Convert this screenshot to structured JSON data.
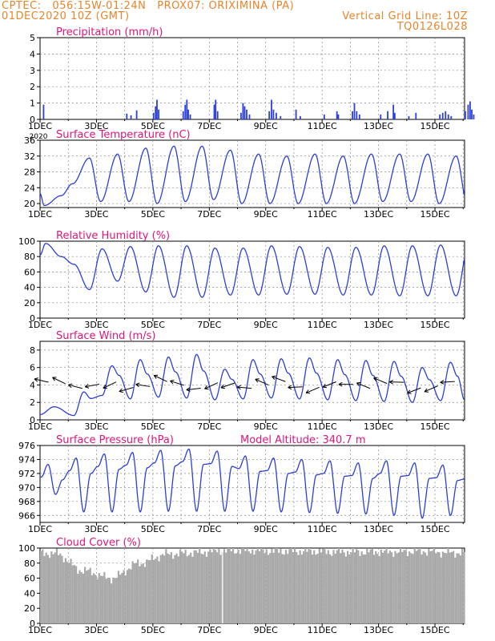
{
  "header": {
    "line1": "CPTEC:   056:15W-01:24N   PROX07: ORIXIMINA (PA)",
    "line2": "01DEC2020 10Z (GMT)",
    "right1": "Vertical Grid Line: 10Z",
    "right2": "TQ0126L028"
  },
  "colors": {
    "header": "#e8842a",
    "title": "#e0157a",
    "series": "#2c3fd6",
    "cloud": "#a9a9a9"
  },
  "x_ticks": [
    "1DEC",
    "3DEC",
    "5DEC",
    "7DEC",
    "9DEC",
    "11DEC",
    "13DEC",
    "15DEC"
  ],
  "chart_data": [
    {
      "id": "precip",
      "type": "bar",
      "title": "Precipitation (mm/h)",
      "ylim": [
        0,
        5
      ],
      "yticks": [
        0,
        1,
        2,
        3,
        4,
        5
      ],
      "x_label_suffix": "2020",
      "events": [
        [
          0.1,
          0.9
        ],
        [
          3.05,
          0.35
        ],
        [
          3.2,
          0.25
        ],
        [
          3.4,
          0.55
        ],
        [
          4.0,
          0.4
        ],
        [
          4.07,
          0.8
        ],
        [
          4.12,
          1.2
        ],
        [
          4.18,
          0.6
        ],
        [
          5.05,
          0.5
        ],
        [
          5.12,
          0.9
        ],
        [
          5.18,
          1.2
        ],
        [
          5.23,
          0.6
        ],
        [
          5.3,
          0.3
        ],
        [
          6.15,
          0.9
        ],
        [
          6.2,
          1.2
        ],
        [
          6.27,
          0.5
        ],
        [
          7.1,
          0.4
        ],
        [
          7.17,
          1.0
        ],
        [
          7.23,
          0.8
        ],
        [
          7.3,
          0.6
        ],
        [
          7.4,
          0.3
        ],
        [
          8.1,
          0.5
        ],
        [
          8.18,
          1.2
        ],
        [
          8.25,
          0.6
        ],
        [
          8.35,
          0.4
        ],
        [
          8.5,
          0.2
        ],
        [
          9.05,
          0.6
        ],
        [
          9.2,
          0.2
        ],
        [
          10.05,
          0.3
        ],
        [
          10.5,
          0.5
        ],
        [
          10.55,
          0.3
        ],
        [
          11.05,
          0.5
        ],
        [
          11.12,
          1.0
        ],
        [
          11.2,
          0.5
        ],
        [
          11.3,
          0.3
        ],
        [
          12.05,
          0.3
        ],
        [
          12.3,
          0.5
        ],
        [
          12.5,
          0.9
        ],
        [
          12.55,
          0.4
        ],
        [
          13.05,
          0.2
        ],
        [
          13.3,
          0.4
        ],
        [
          14.15,
          0.3
        ],
        [
          14.25,
          0.4
        ],
        [
          14.35,
          0.5
        ],
        [
          14.45,
          0.3
        ],
        [
          14.55,
          0.2
        ],
        [
          15.05,
          0.5
        ],
        [
          15.15,
          0.9
        ],
        [
          15.22,
          1.1
        ],
        [
          15.28,
          0.6
        ],
        [
          15.35,
          0.3
        ]
      ]
    },
    {
      "id": "temp",
      "type": "line",
      "title": "Surface Temperature (nC)",
      "ylim": [
        19,
        36
      ],
      "yticks": [
        20,
        24,
        28,
        32,
        36
      ],
      "day_max": [
        22,
        31.5,
        32.5,
        34,
        34.5,
        34.5,
        33.5,
        32.5,
        32,
        32.5,
        32,
        32.5,
        32.5,
        32.5,
        32,
        30.5
      ],
      "night_min": [
        19.5,
        25,
        20.5,
        20.5,
        20,
        20.5,
        21,
        20,
        20,
        20,
        20,
        20,
        20.5,
        20.5,
        20,
        20
      ]
    },
    {
      "id": "rh",
      "type": "line",
      "title": "Relative Humidity (%)",
      "ylim": [
        0,
        100
      ],
      "yticks": [
        0,
        20,
        40,
        60,
        80,
        100
      ],
      "day_min": [
        80,
        37,
        48,
        34,
        27,
        27,
        30,
        30,
        31,
        31,
        30,
        30,
        29,
        29,
        29,
        34
      ],
      "night_max": [
        97,
        70,
        90,
        93,
        94,
        94,
        91,
        91,
        94,
        93,
        92,
        92,
        94,
        94,
        95,
        95
      ]
    },
    {
      "id": "wind",
      "type": "line",
      "title": "Surface Wind (m/s)",
      "ylim": [
        0,
        9
      ],
      "yticks": [
        0,
        2,
        4,
        6,
        8
      ],
      "peak": [
        3.2,
        6.2,
        6.9,
        7.2,
        7.5,
        5.8,
        6.9,
        7.0,
        7.1,
        6.9,
        6.8,
        6.7,
        6.0,
        6.6
      ],
      "low": [
        0.5,
        2.8,
        2.4,
        2.6,
        2.5,
        2.3,
        2.4,
        2.5,
        2.4,
        2.3,
        2.2,
        2.1,
        2.0,
        2.2
      ]
    },
    {
      "id": "pres",
      "type": "line",
      "title": "Surface Pressure (hPa)",
      "subtitle": "Model Altitude: 340.7 m",
      "ylim": [
        965,
        976
      ],
      "yticks": [
        966,
        968,
        970,
        972,
        974,
        976
      ],
      "daily_peak": [
        973.3,
        974.2,
        974.8,
        975.0,
        975.3,
        975.5,
        975.2,
        974.5,
        974.2,
        974.0,
        973.8,
        973.5,
        973.8,
        973.5,
        973.2,
        973.0
      ],
      "daily_min": [
        969.0,
        966.5,
        966.5,
        966.5,
        966.6,
        966.6,
        966.6,
        966.6,
        966.5,
        966.4,
        966.3,
        966.2,
        966.0,
        965.6,
        966.0,
        966.2
      ]
    },
    {
      "id": "cloud",
      "type": "area",
      "title": "Cloud Cover (%)",
      "ylim": [
        0,
        100
      ],
      "yticks": [
        0,
        20,
        40,
        60,
        80,
        100
      ],
      "cover_daily": [
        93,
        70,
        60,
        80,
        92,
        94,
        97,
        97,
        96,
        96,
        95,
        95,
        95,
        96,
        94,
        93
      ]
    }
  ]
}
